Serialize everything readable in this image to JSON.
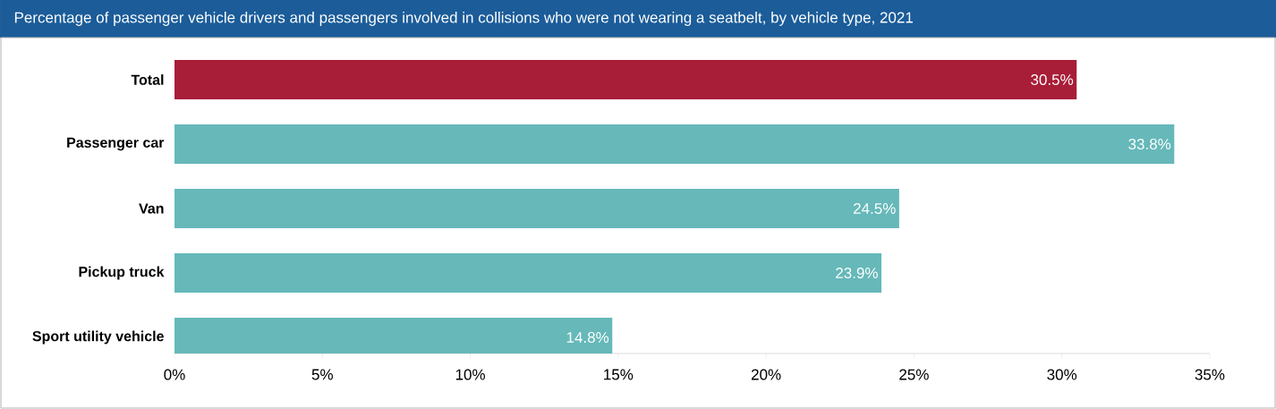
{
  "chart_data": {
    "type": "bar",
    "orientation": "horizontal",
    "title": "Percentage of passenger vehicle drivers and passengers involved in collisions who were not wearing a seatbelt, by vehicle type, 2021",
    "categories": [
      "Total",
      "Passenger car",
      "Van",
      "Pickup truck",
      "Sport utility vehicle"
    ],
    "values": [
      30.5,
      33.8,
      24.5,
      23.9,
      14.8
    ],
    "colors": [
      "#a81d37",
      "#66b8b9",
      "#66b8b9",
      "#66b8b9",
      "#66b8b9"
    ],
    "value_labels": [
      "30.5%",
      "33.8%",
      "24.5%",
      "23.9%",
      "14.8%"
    ],
    "grid": false,
    "xlim": [
      0,
      35
    ],
    "xticks": [
      {
        "value": 0,
        "label": "0%"
      },
      {
        "value": 5,
        "label": "5%"
      },
      {
        "value": 10,
        "label": "10%"
      },
      {
        "value": 15,
        "label": "15%"
      },
      {
        "value": 20,
        "label": "20%"
      },
      {
        "value": 25,
        "label": "25%"
      },
      {
        "value": 30,
        "label": "30%"
      },
      {
        "value": 35,
        "label": "35%"
      }
    ]
  }
}
